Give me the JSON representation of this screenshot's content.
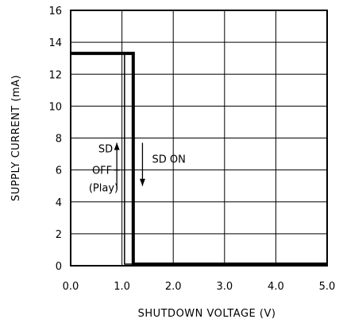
{
  "chart_data": {
    "type": "line",
    "xlabel": "SHUTDOWN VOLTAGE (V)",
    "ylabel": "SUPPLY CURRENT (mA)",
    "xlim": [
      0,
      5
    ],
    "ylim": [
      0,
      16
    ],
    "x_ticks": [
      "0.0",
      "1.0",
      "2.0",
      "3.0",
      "4.0",
      "5.0"
    ],
    "y_ticks": [
      "0",
      "2",
      "4",
      "6",
      "8",
      "10",
      "12",
      "14",
      "16"
    ],
    "grid": true,
    "series": [
      {
        "line_style": "thin",
        "points": [
          [
            0,
            13.3
          ],
          [
            1.05,
            13.3
          ],
          [
            1.05,
            0.1
          ],
          [
            5,
            0.1
          ]
        ]
      },
      {
        "line_style": "thick",
        "points": [
          [
            0,
            13.3
          ],
          [
            1.22,
            13.3
          ],
          [
            1.22,
            0.1
          ],
          [
            5,
            0.1
          ]
        ]
      }
    ],
    "annotations": [
      {
        "id": "sd-off",
        "lines": [
          "SD",
          "OFF",
          "(Play)"
        ],
        "arrow": "up",
        "x": 0.9,
        "y_from": 4.8,
        "y_to": 7.7
      },
      {
        "id": "sd-on",
        "lines": [
          "SD ON"
        ],
        "arrow": "down",
        "x": 1.4,
        "y_from": 7.7,
        "y_to": 5.0
      }
    ],
    "colors": {
      "line": "#000000",
      "grid": "#000000",
      "background": "#ffffff"
    }
  }
}
